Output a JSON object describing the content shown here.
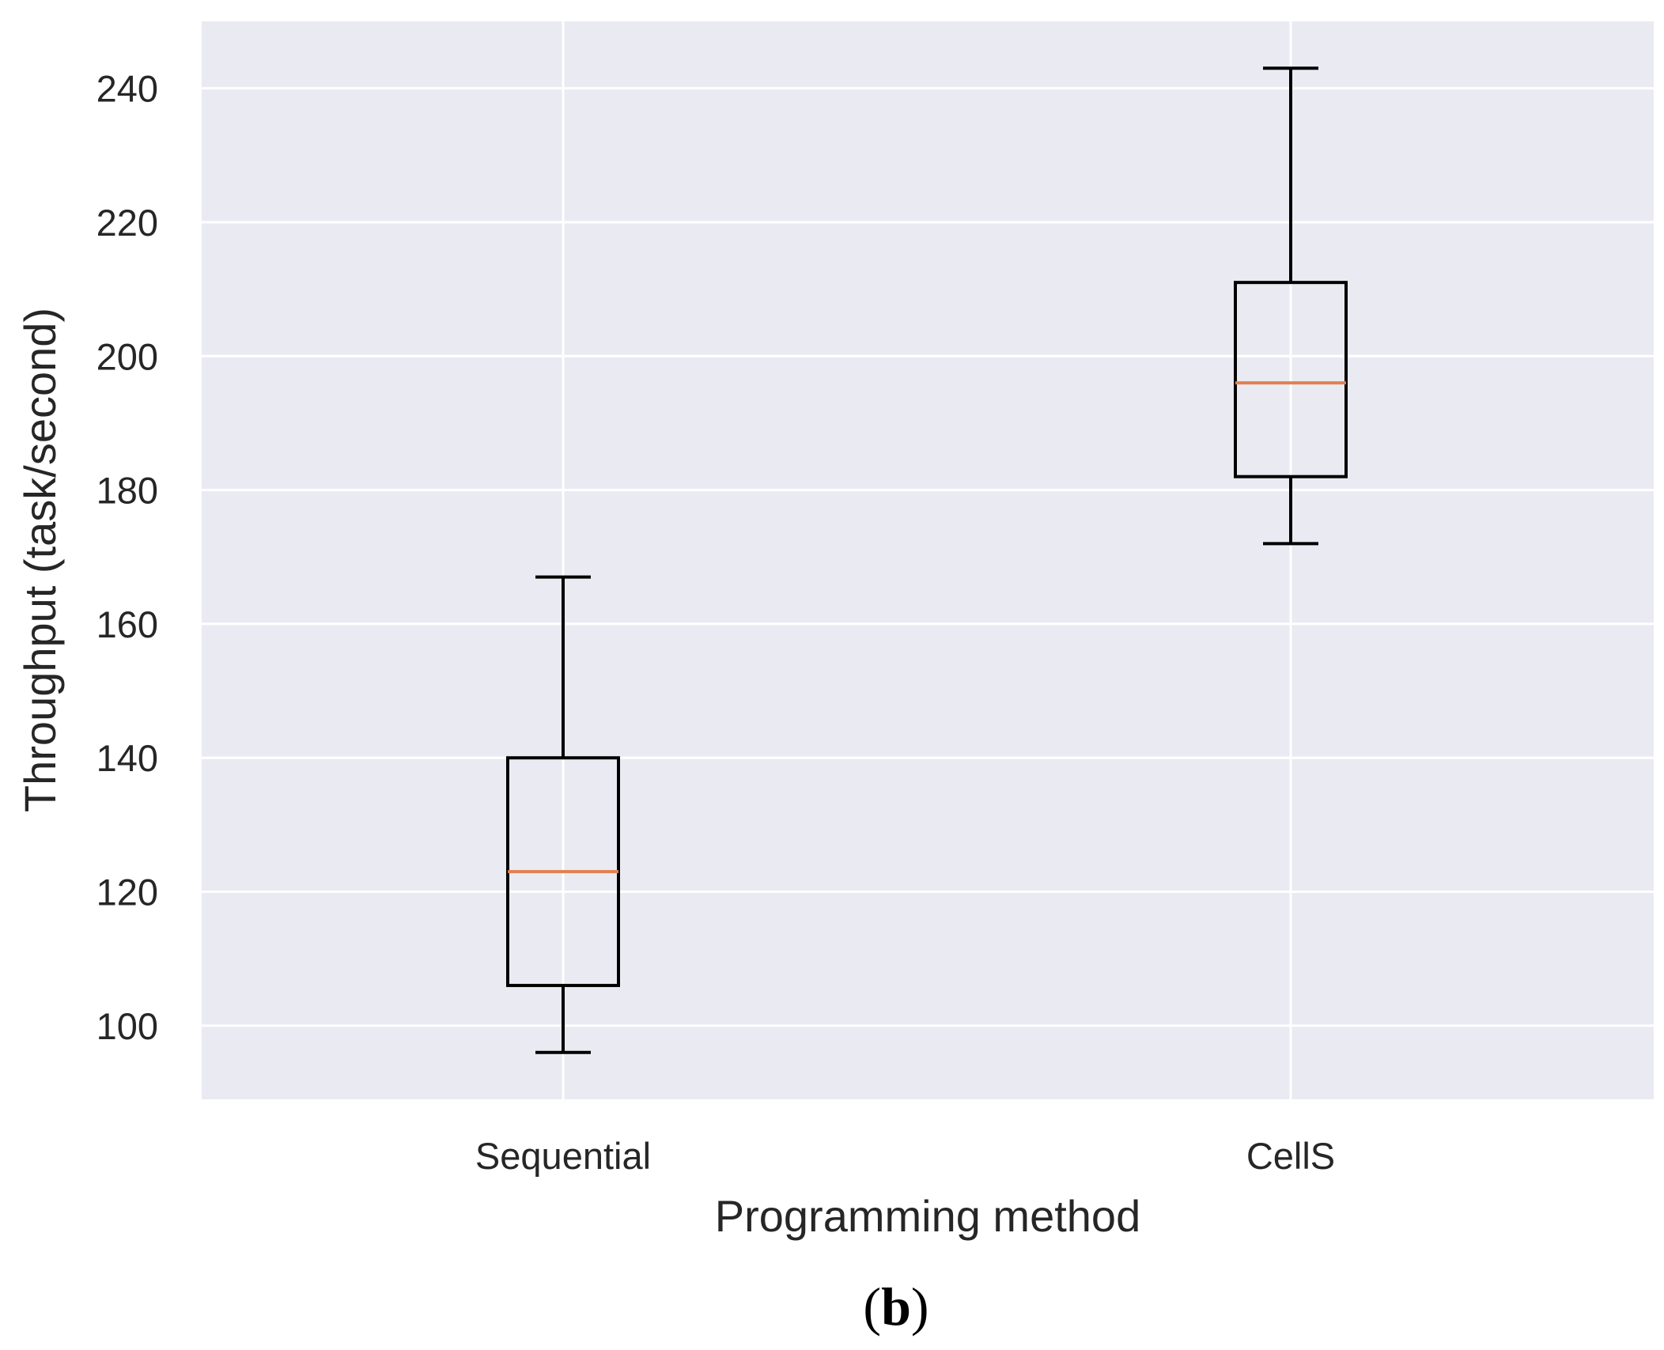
{
  "chart_data": {
    "type": "boxplot",
    "title": "",
    "xlabel": "Programming method",
    "ylabel": "Throughput (task/second)",
    "panel_label": {
      "open": "(",
      "letter": "b",
      "close": ")"
    },
    "categories": [
      "Sequential",
      "CellS"
    ],
    "boxes": [
      {
        "name": "Sequential",
        "whisker_low": 96,
        "q1": 106,
        "median": 123,
        "q3": 140,
        "whisker_high": 167
      },
      {
        "name": "CellS",
        "whisker_low": 172,
        "q1": 182,
        "median": 196,
        "q3": 211,
        "whisker_high": 243
      }
    ],
    "ylim": [
      89,
      250
    ],
    "yticks": [
      100,
      120,
      140,
      160,
      180,
      200,
      220,
      240
    ],
    "grid": true,
    "colors": {
      "plot_background": "#eaeaf2",
      "grid": "#ffffff",
      "box": "#000000",
      "median": "#e1814f",
      "text": "#262626"
    }
  }
}
